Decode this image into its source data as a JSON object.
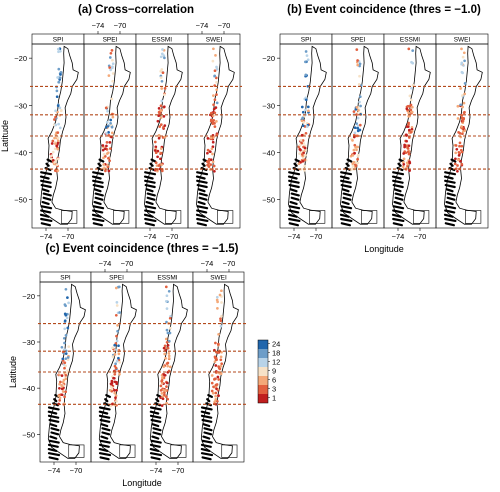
{
  "figure": {
    "colorbar": {
      "ticks": [
        "24",
        "18",
        "12",
        "9",
        "6",
        "3",
        "1"
      ],
      "colors": [
        "#2166ac",
        "#6d9dc8",
        "#b8d3e8",
        "#f7e2c7",
        "#f4a979",
        "#e2603f",
        "#c01f1f"
      ]
    },
    "boundary_color": "#b34a1c",
    "map_outline_color": "#000000"
  },
  "chart_data": [
    {
      "type": "map",
      "title": "(a) Cross−correlation",
      "panels": [
        "SPI",
        "SPEI",
        "ESSMI",
        "SWEI"
      ],
      "ylabel": "Latitude",
      "xlabel": "",
      "ylim": [
        -56,
        -17
      ],
      "y_ticks": [
        "−20",
        "−30",
        "−40",
        "−50"
      ],
      "x_ticks_top": [
        "−74",
        "−70"
      ],
      "x_ticks_bottom": [
        "−74",
        "−70"
      ],
      "dashed_lines_lat": [
        -26,
        -32,
        -36.5,
        -43.5
      ]
    },
    {
      "type": "map",
      "title": "(b) Event coincidence (thres = −1.0)",
      "panels": [
        "SPI",
        "SPEI",
        "ESSMI",
        "SWEI"
      ],
      "ylabel": "",
      "xlabel": "Longitude",
      "ylim": [
        -56,
        -17
      ],
      "y_ticks": [
        "−20",
        "−30",
        "−40",
        "−50"
      ],
      "x_ticks_top": [],
      "x_ticks_bottom": [
        "−74",
        "−70"
      ],
      "dashed_lines_lat": [
        -26,
        -32,
        -36.5,
        -43.5
      ]
    },
    {
      "type": "map",
      "title": "(c) Event coincidence (thres = −1.5)",
      "panels": [
        "SPI",
        "SPEI",
        "ESSMI",
        "SWEI"
      ],
      "ylabel": "Latitude",
      "xlabel": "Longitude",
      "ylim": [
        -56,
        -17
      ],
      "y_ticks": [
        "−20",
        "−30",
        "−40",
        "−50"
      ],
      "x_ticks_top": [
        "−74",
        "−70"
      ],
      "x_ticks_bottom": [
        "−74",
        "−70"
      ],
      "dashed_lines_lat": [
        -26,
        -32,
        -36.5,
        -43.5
      ]
    }
  ]
}
